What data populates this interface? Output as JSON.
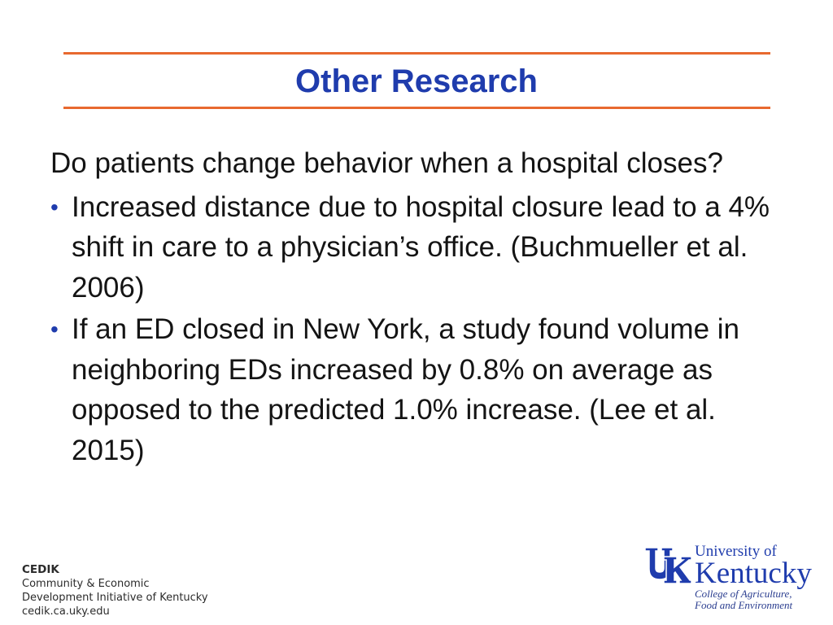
{
  "slide": {
    "title": "Other Research",
    "question": "Do patients change behavior when a hospital closes?",
    "bullets": [
      {
        "text": "Increased distance due to hospital closure lead to a 4% shift in care to a physician’s office. (Buchmueller et al. 2006)"
      },
      {
        "text": "If an ED closed in New York, a study found volume in neighboring EDs increased by 0.8% on average as opposed to the predicted 1.0% increase.  (Lee et al. 2015)"
      }
    ],
    "bullet_glyph": "•"
  },
  "footer": {
    "cedik": {
      "name": "CEDIK",
      "line1": "Community & Economic",
      "line2": "Development Initiative of Kentucky",
      "url": "cedik.ca.uky.edu"
    },
    "uk": {
      "line1": "University of",
      "line2": "Kentucky",
      "line3": "College of Agriculture,",
      "line4": "Food and Environment"
    }
  },
  "colors": {
    "accent_rule": "#E8692F",
    "title_blue": "#1F3CAD",
    "text": "#141414"
  }
}
